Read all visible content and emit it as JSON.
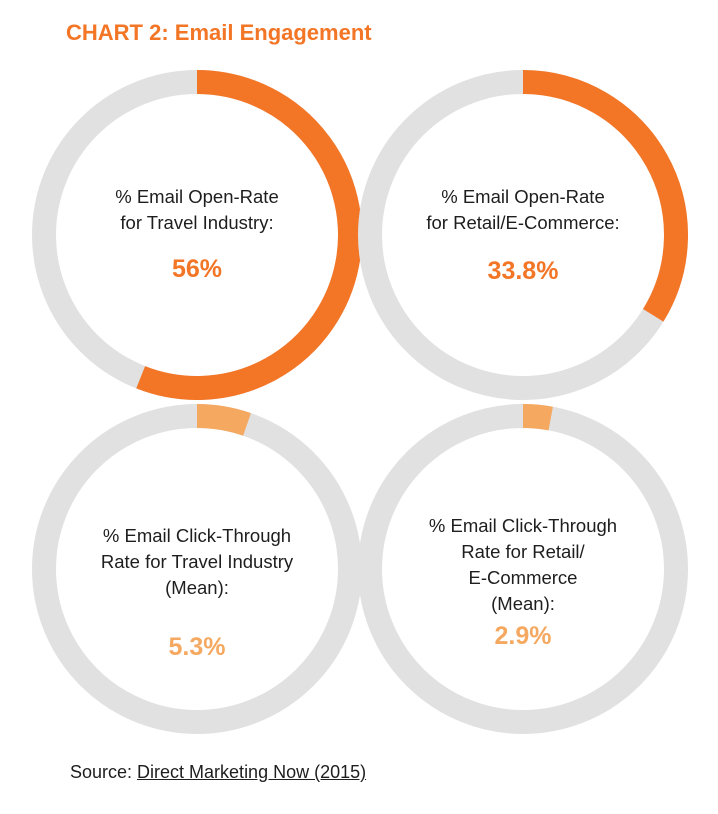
{
  "title": "CHART 2: Email Engagement",
  "colors": {
    "track": "#e1e1e1",
    "open_rate": "#f37526",
    "click_through": "#f5a860"
  },
  "chart_data": [
    {
      "type": "pie",
      "label": "% Email Open-Rate\nfor Travel Industry:",
      "value": 56,
      "display": "56%",
      "color": "#f37526"
    },
    {
      "type": "pie",
      "label": "% Email Open-Rate\nfor Retail/E-Commerce:",
      "value": 33.8,
      "display": "33.8%",
      "color": "#f37526"
    },
    {
      "type": "pie",
      "label": "% Email Click-Through\nRate for Travel Industry\n(Mean):",
      "value": 5.3,
      "display": "5.3%",
      "color": "#f5a860"
    },
    {
      "type": "pie",
      "label": "% Email Click-Through\nRate for Retail/\nE-Commerce\n(Mean):",
      "value": 2.9,
      "display": "2.9%",
      "color": "#f5a860"
    }
  ],
  "source": {
    "prefix": "Source: ",
    "link_text": "Direct Marketing Now (2015)"
  }
}
